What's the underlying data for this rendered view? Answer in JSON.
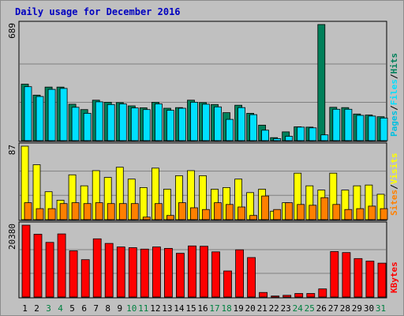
{
  "title": "Daily usage for December 2016",
  "colors": {
    "background": "#c0c0c0",
    "title": "#0000c0",
    "hits": "#00805a",
    "files": "#00e0ff",
    "pages": "#00c0e0",
    "visits": "#ffff00",
    "sites": "#ff8000",
    "kbytes": "#ff0000",
    "weekday_label": "#000000",
    "weekend_label": "#008040"
  },
  "chart_data": [
    {
      "type": "bar",
      "panel": "top",
      "ymax_label": "689",
      "ymax": 689,
      "right_label_parts": [
        "Pages",
        "/",
        "Files",
        "/",
        "Hits"
      ],
      "categories": [
        "1",
        "2",
        "3",
        "4",
        "5",
        "6",
        "7",
        "8",
        "9",
        "10",
        "11",
        "12",
        "13",
        "14",
        "15",
        "16",
        "17",
        "18",
        "19",
        "20",
        "21",
        "22",
        "23",
        "24",
        "25",
        "26",
        "27",
        "28",
        "29",
        "30",
        "31"
      ],
      "series": [
        {
          "key": "hits",
          "values": [
            335,
            270,
            318,
            318,
            216,
            184,
            240,
            228,
            226,
            206,
            195,
            228,
            192,
            196,
            240,
            226,
            214,
            166,
            210,
            162,
            92,
            18,
            52,
            82,
            80,
            689,
            198,
            196,
            158,
            152,
            142
          ]
        },
        {
          "key": "files",
          "values": [
            320,
            262,
            304,
            310,
            198,
            162,
            230,
            214,
            218,
            194,
            184,
            218,
            180,
            192,
            228,
            216,
            200,
            126,
            196,
            154,
            62,
            12,
            26,
            80,
            76,
            34,
            186,
            186,
            150,
            146,
            134
          ]
        }
      ]
    },
    {
      "type": "bar",
      "panel": "middle",
      "ymax_label": "87",
      "ymax": 87,
      "right_label_parts": [
        "Sites",
        "/",
        "Visits"
      ],
      "categories": [
        "1",
        "2",
        "3",
        "4",
        "5",
        "6",
        "7",
        "8",
        "9",
        "10",
        "11",
        "12",
        "13",
        "14",
        "15",
        "16",
        "17",
        "18",
        "19",
        "20",
        "21",
        "22",
        "23",
        "24",
        "25",
        "26",
        "27",
        "28",
        "29",
        "30",
        "31"
      ],
      "series": [
        {
          "key": "visits",
          "values": [
            87,
            65,
            33,
            23,
            53,
            40,
            58,
            50,
            62,
            48,
            38,
            61,
            36,
            52,
            58,
            52,
            36,
            38,
            48,
            32,
            36,
            10,
            20,
            55,
            40,
            35,
            55,
            35,
            40,
            41,
            30
          ]
        },
        {
          "key": "sites",
          "values": [
            20,
            13,
            13,
            19,
            20,
            19,
            20,
            19,
            19,
            19,
            3,
            19,
            5,
            20,
            14,
            12,
            20,
            18,
            15,
            5,
            28,
            12,
            20,
            18,
            17,
            26,
            18,
            12,
            13,
            16,
            13
          ]
        }
      ]
    },
    {
      "type": "bar",
      "panel": "bottom",
      "ymax_label": "20380",
      "ymax": 20380,
      "right_label_parts": [
        "KBytes"
      ],
      "categories": [
        "1",
        "2",
        "3",
        "4",
        "5",
        "6",
        "7",
        "8",
        "9",
        "10",
        "11",
        "12",
        "13",
        "14",
        "15",
        "16",
        "17",
        "18",
        "19",
        "20",
        "21",
        "22",
        "23",
        "24",
        "25",
        "26",
        "27",
        "28",
        "29",
        "30",
        "31"
      ],
      "series": [
        {
          "key": "kbytes",
          "values": [
            20380,
            17800,
            15500,
            17900,
            13100,
            10600,
            16500,
            15200,
            14200,
            14000,
            13600,
            14200,
            13800,
            12400,
            14500,
            14400,
            12800,
            7400,
            13400,
            11200,
            1300,
            300,
            500,
            1000,
            1000,
            2300,
            12900,
            12600,
            10900,
            10200,
            9600
          ]
        }
      ]
    }
  ],
  "day_labels": [
    "1",
    "2",
    "3",
    "4",
    "5",
    "6",
    "7",
    "8",
    "9",
    "10",
    "11",
    "12",
    "13",
    "14",
    "15",
    "16",
    "17",
    "18",
    "19",
    "20",
    "21",
    "22",
    "23",
    "24",
    "25",
    "26",
    "27",
    "28",
    "29",
    "30",
    "31"
  ],
  "weekend_days": [
    "3",
    "4",
    "10",
    "11",
    "17",
    "18",
    "24",
    "25",
    "31"
  ]
}
